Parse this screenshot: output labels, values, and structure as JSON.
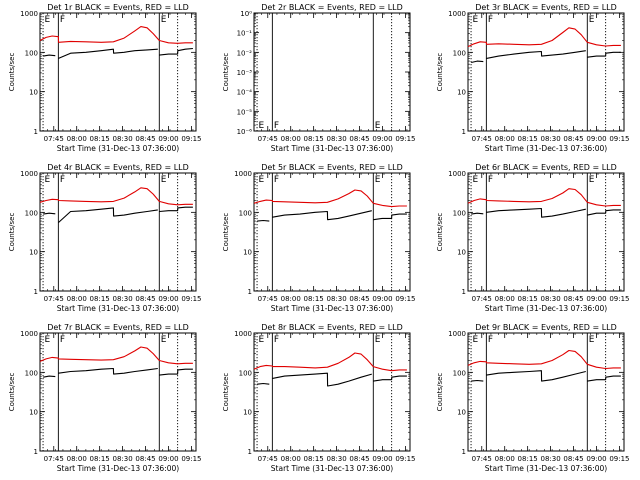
{
  "colors": {
    "events": "#000000",
    "lld": "#e00000",
    "axis": "#000000",
    "background": "#ffffff"
  },
  "shared": {
    "xlabel": "Start Time (31-Dec-13 07:36:00)",
    "ylabel": "Counts/sec",
    "x_tick_labels": [
      "07:45",
      "08:00",
      "08:15",
      "08:30",
      "08:45",
      "09:00",
      "09:15"
    ],
    "x_tick_minutes": [
      9,
      24,
      39,
      54,
      69,
      84,
      99
    ],
    "xlim_minutes": [
      0,
      102
    ],
    "event_marker_minutes": [
      2,
      12,
      78,
      90
    ],
    "marker_labels": [
      "E",
      "F",
      "E"
    ],
    "marker_label_minutes": [
      2,
      12,
      78
    ]
  },
  "chart_data": [
    {
      "type": "line",
      "title": "Det 1r BLACK = Events, RED = LLD",
      "yscale": "log",
      "ylim": [
        1,
        1000
      ],
      "y_tick_labels": [
        "1",
        "10",
        "100",
        "1000"
      ],
      "y_tick_values": [
        1,
        10,
        100,
        1000
      ],
      "series": [
        {
          "name": "Events",
          "color": "black",
          "x": [
            0,
            2,
            2.1,
            6,
            10,
            12,
            12.1,
            20,
            30,
            40,
            48,
            48.1,
            55,
            62,
            70,
            77,
            78,
            78.1,
            84,
            90,
            90.1,
            95,
            100
          ],
          "y": [
            0,
            0,
            80,
            85,
            82,
            0,
            70,
            95,
            100,
            110,
            120,
            95,
            100,
            110,
            115,
            120,
            0,
            85,
            90,
            90,
            110,
            120,
            125
          ]
        },
        {
          "name": "LLD",
          "color": "red",
          "x": [
            0,
            4,
            8,
            12,
            12.1,
            20,
            30,
            40,
            48,
            55,
            62,
            66,
            70,
            74,
            78,
            84,
            90,
            95,
            100
          ],
          "y": [
            200,
            240,
            260,
            250,
            180,
            190,
            185,
            180,
            185,
            230,
            350,
            450,
            420,
            300,
            200,
            175,
            170,
            175,
            175
          ]
        }
      ]
    },
    {
      "type": "line",
      "title": "Det 2r BLACK = Events, RED = LLD",
      "yscale": "log",
      "ylim": [
        1e-06,
        1
      ],
      "y_tick_labels": [
        "10⁻⁶",
        "10⁻⁵",
        "10⁻⁴",
        "10⁻³",
        "10⁻²",
        "10⁻¹",
        "10⁰"
      ],
      "y_tick_values": [
        1e-06,
        1e-05,
        0.0001,
        0.001,
        0.01,
        0.1,
        1
      ],
      "series": [
        {
          "name": "Events",
          "color": "black",
          "x": [],
          "y": []
        },
        {
          "name": "LLD",
          "color": "red",
          "x": [],
          "y": []
        }
      ]
    },
    {
      "type": "line",
      "title": "Det 3r BLACK = Events, RED = LLD",
      "yscale": "log",
      "ylim": [
        1,
        1000
      ],
      "y_tick_labels": [
        "1",
        "10",
        "100",
        "1000"
      ],
      "y_tick_values": [
        1,
        10,
        100,
        1000
      ],
      "series": [
        {
          "name": "Events",
          "color": "black",
          "x": [
            0,
            2,
            2.1,
            6,
            10,
            12,
            12.1,
            20,
            30,
            40,
            48,
            48.1,
            55,
            62,
            70,
            77,
            78,
            78.1,
            84,
            90,
            90.1,
            95,
            100
          ],
          "y": [
            0,
            0,
            55,
            60,
            58,
            0,
            70,
            80,
            90,
            100,
            105,
            80,
            85,
            90,
            100,
            110,
            0,
            75,
            80,
            80,
            95,
            100,
            100
          ]
        },
        {
          "name": "LLD",
          "color": "red",
          "x": [
            0,
            4,
            8,
            12,
            12.1,
            20,
            30,
            40,
            48,
            55,
            62,
            66,
            70,
            74,
            78,
            84,
            90,
            95,
            100
          ],
          "y": [
            140,
            165,
            185,
            180,
            160,
            165,
            160,
            155,
            160,
            200,
            320,
            420,
            390,
            280,
            180,
            155,
            145,
            150,
            150
          ]
        }
      ]
    },
    {
      "type": "line",
      "title": "Det 4r BLACK = Events, RED = LLD",
      "yscale": "log",
      "ylim": [
        1,
        1000
      ],
      "y_tick_labels": [
        "1",
        "10",
        "100",
        "1000"
      ],
      "y_tick_values": [
        1,
        10,
        100,
        1000
      ],
      "series": [
        {
          "name": "Events",
          "color": "black",
          "x": [
            0,
            2,
            2.1,
            6,
            10,
            12,
            12.1,
            20,
            30,
            40,
            48,
            48.1,
            55,
            62,
            70,
            77,
            78,
            78.1,
            84,
            90,
            90.1,
            95,
            100
          ],
          "y": [
            0,
            0,
            90,
            95,
            92,
            0,
            55,
            105,
            110,
            120,
            130,
            80,
            85,
            95,
            105,
            115,
            0,
            105,
            110,
            110,
            130,
            135,
            135
          ]
        },
        {
          "name": "LLD",
          "color": "red",
          "x": [
            0,
            4,
            8,
            12,
            12.1,
            20,
            30,
            40,
            48,
            55,
            62,
            66,
            70,
            74,
            78,
            84,
            90,
            95,
            100
          ],
          "y": [
            180,
            200,
            215,
            210,
            200,
            195,
            190,
            185,
            190,
            230,
            330,
            420,
            400,
            290,
            190,
            165,
            155,
            160,
            160
          ]
        }
      ]
    },
    {
      "type": "line",
      "title": "Det 5r BLACK = Events, RED = LLD",
      "yscale": "log",
      "ylim": [
        1,
        1000
      ],
      "y_tick_labels": [
        "1",
        "10",
        "100",
        "1000"
      ],
      "y_tick_values": [
        1,
        10,
        100,
        1000
      ],
      "series": [
        {
          "name": "Events",
          "color": "black",
          "x": [
            0,
            2,
            2.1,
            6,
            10,
            12,
            12.1,
            20,
            30,
            40,
            48,
            48.1,
            55,
            62,
            70,
            77,
            78,
            78.1,
            84,
            90,
            90.1,
            95,
            100
          ],
          "y": [
            0,
            0,
            60,
            62,
            60,
            0,
            75,
            85,
            90,
            100,
            105,
            65,
            70,
            80,
            95,
            110,
            0,
            65,
            70,
            70,
            85,
            90,
            90
          ]
        },
        {
          "name": "LLD",
          "color": "red",
          "x": [
            0,
            4,
            8,
            12,
            12.1,
            20,
            30,
            40,
            48,
            55,
            62,
            66,
            70,
            74,
            78,
            84,
            90,
            95,
            100
          ],
          "y": [
            170,
            190,
            205,
            200,
            190,
            185,
            180,
            175,
            180,
            220,
            300,
            370,
            350,
            260,
            170,
            150,
            140,
            145,
            145
          ]
        }
      ]
    },
    {
      "type": "line",
      "title": "Det 6r BLACK = Events, RED = LLD",
      "yscale": "log",
      "ylim": [
        1,
        1000
      ],
      "y_tick_labels": [
        "1",
        "10",
        "100",
        "1000"
      ],
      "y_tick_values": [
        1,
        10,
        100,
        1000
      ],
      "series": [
        {
          "name": "Events",
          "color": "black",
          "x": [
            0,
            2,
            2.1,
            6,
            10,
            12,
            12.1,
            20,
            30,
            40,
            48,
            48.1,
            55,
            62,
            70,
            77,
            78,
            78.1,
            84,
            90,
            90.1,
            95,
            100
          ],
          "y": [
            0,
            0,
            90,
            95,
            92,
            0,
            100,
            110,
            115,
            120,
            125,
            75,
            80,
            90,
            105,
            120,
            0,
            85,
            95,
            95,
            110,
            115,
            115
          ]
        },
        {
          "name": "LLD",
          "color": "red",
          "x": [
            0,
            4,
            8,
            12,
            12.1,
            20,
            30,
            40,
            48,
            55,
            62,
            66,
            70,
            74,
            78,
            84,
            90,
            95,
            100
          ],
          "y": [
            170,
            200,
            220,
            210,
            200,
            195,
            190,
            185,
            190,
            225,
            310,
            400,
            380,
            280,
            180,
            155,
            145,
            150,
            150
          ]
        }
      ]
    },
    {
      "type": "line",
      "title": "Det 7r BLACK = Events, RED = LLD",
      "yscale": "log",
      "ylim": [
        1,
        1000
      ],
      "y_tick_labels": [
        "1",
        "10",
        "100",
        "1000"
      ],
      "y_tick_values": [
        1,
        10,
        100,
        1000
      ],
      "series": [
        {
          "name": "Events",
          "color": "black",
          "x": [
            0,
            2,
            2.1,
            6,
            10,
            12,
            12.1,
            20,
            30,
            40,
            48,
            48.1,
            55,
            62,
            70,
            77,
            78,
            78.1,
            84,
            90,
            90.1,
            95,
            100
          ],
          "y": [
            0,
            0,
            75,
            80,
            78,
            0,
            95,
            105,
            110,
            120,
            125,
            90,
            95,
            105,
            115,
            125,
            0,
            85,
            90,
            90,
            115,
            120,
            120
          ]
        },
        {
          "name": "LLD",
          "color": "red",
          "x": [
            0,
            4,
            8,
            12,
            12.1,
            20,
            30,
            40,
            48,
            55,
            62,
            66,
            70,
            74,
            78,
            84,
            90,
            95,
            100
          ],
          "y": [
            190,
            220,
            240,
            230,
            220,
            215,
            210,
            205,
            210,
            250,
            350,
            440,
            410,
            300,
            200,
            175,
            165,
            170,
            170
          ]
        }
      ]
    },
    {
      "type": "line",
      "title": "Det 8r BLACK = Events, RED = LLD",
      "yscale": "log",
      "ylim": [
        1,
        1000
      ],
      "y_tick_labels": [
        "1",
        "10",
        "100",
        "1000"
      ],
      "y_tick_values": [
        1,
        10,
        100,
        1000
      ],
      "series": [
        {
          "name": "Events",
          "color": "black",
          "x": [
            0,
            2,
            2.1,
            6,
            10,
            12,
            12.1,
            20,
            30,
            40,
            48,
            48.1,
            55,
            62,
            70,
            77,
            78,
            78.1,
            84,
            90,
            90.1,
            95,
            100
          ],
          "y": [
            0,
            0,
            50,
            52,
            50,
            0,
            70,
            80,
            85,
            90,
            95,
            45,
            50,
            60,
            75,
            90,
            0,
            60,
            65,
            65,
            75,
            80,
            80
          ]
        },
        {
          "name": "LLD",
          "color": "red",
          "x": [
            0,
            4,
            8,
            12,
            12.1,
            20,
            30,
            40,
            48,
            55,
            62,
            66,
            70,
            74,
            78,
            84,
            90,
            95,
            100
          ],
          "y": [
            120,
            140,
            150,
            145,
            140,
            140,
            135,
            130,
            135,
            170,
            240,
            310,
            290,
            210,
            140,
            120,
            110,
            115,
            115
          ]
        }
      ]
    },
    {
      "type": "line",
      "title": "Det 9r BLACK = Events, RED = LLD",
      "yscale": "log",
      "ylim": [
        1,
        1000
      ],
      "y_tick_labels": [
        "1",
        "10",
        "100",
        "1000"
      ],
      "y_tick_values": [
        1,
        10,
        100,
        1000
      ],
      "series": [
        {
          "name": "Events",
          "color": "black",
          "x": [
            0,
            2,
            2.1,
            6,
            10,
            12,
            12.1,
            20,
            30,
            40,
            48,
            48.1,
            55,
            62,
            70,
            77,
            78,
            78.1,
            84,
            90,
            90.1,
            95,
            100
          ],
          "y": [
            0,
            0,
            60,
            62,
            60,
            0,
            85,
            95,
            100,
            105,
            110,
            60,
            65,
            75,
            90,
            105,
            0,
            60,
            65,
            65,
            75,
            80,
            80
          ]
        },
        {
          "name": "LLD",
          "color": "red",
          "x": [
            0,
            4,
            8,
            12,
            12.1,
            20,
            30,
            40,
            48,
            55,
            62,
            66,
            70,
            74,
            78,
            84,
            90,
            95,
            100
          ],
          "y": [
            150,
            175,
            190,
            185,
            175,
            170,
            165,
            160,
            165,
            200,
            280,
            360,
            340,
            250,
            160,
            135,
            125,
            130,
            130
          ]
        }
      ]
    }
  ]
}
